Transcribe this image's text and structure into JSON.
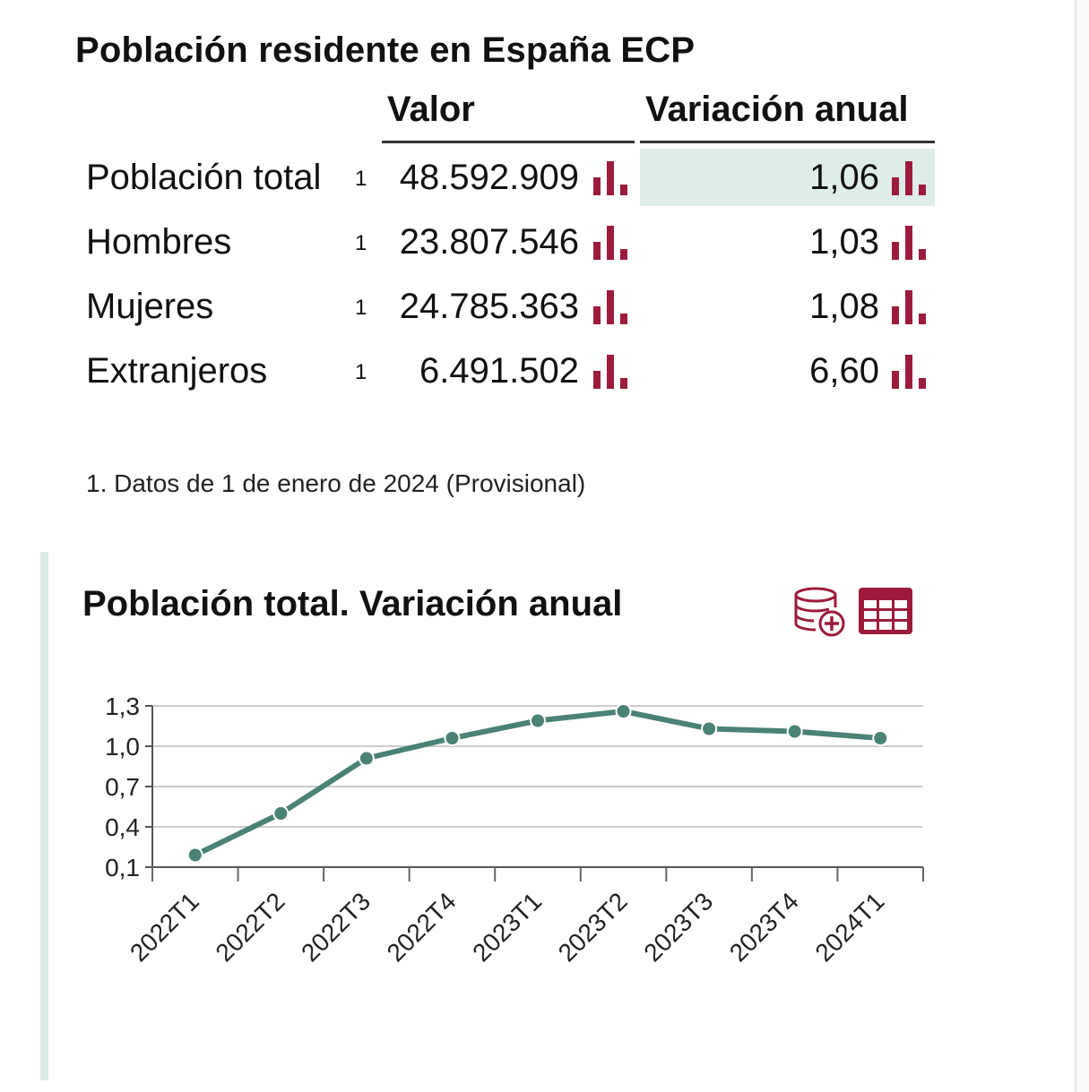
{
  "page": {
    "title": "Población residente en España ECP",
    "columns": {
      "valor": "Valor",
      "variacion": "Variación anual"
    }
  },
  "rows": [
    {
      "label": "Población total",
      "note": "1",
      "valor": "48.592.909",
      "variacion": "1,06",
      "highlighted": true
    },
    {
      "label": "Hombres",
      "note": "1",
      "valor": "23.807.546",
      "variacion": "1,03",
      "highlighted": false
    },
    {
      "label": "Mujeres",
      "note": "1",
      "valor": "24.785.363",
      "variacion": "1,08",
      "highlighted": false
    },
    {
      "label": "Extranjeros",
      "note": "1",
      "valor": "6.491.502",
      "variacion": "6,60",
      "highlighted": false
    }
  ],
  "footnote": "1. Datos de 1 de enero de 2024 (Provisional)",
  "icons": {
    "bars": "bar-chart-icon",
    "database": "database-add-icon",
    "table": "table-grid-icon"
  },
  "colors": {
    "accent": "#9c1b3c",
    "highlight": "#deecea",
    "line": "#4a8275",
    "grid": "#cccccc"
  },
  "chart": {
    "title": "Población total. Variación anual"
  },
  "chart_data": {
    "type": "line",
    "title": "Población total. Variación anual",
    "categories": [
      "2022T1",
      "2022T2",
      "2022T3",
      "2022T4",
      "2023T1",
      "2023T2",
      "2023T3",
      "2023T4",
      "2024T1"
    ],
    "series": [
      {
        "values": [
          0.19,
          0.5,
          0.91,
          1.06,
          1.19,
          1.26,
          1.13,
          1.11,
          1.06
        ]
      }
    ],
    "yticks": [
      "1,3",
      "1,0",
      "0,7",
      "0,4",
      "0,1"
    ],
    "ylim": [
      0.1,
      1.3
    ],
    "grid": true,
    "legend": "none"
  }
}
